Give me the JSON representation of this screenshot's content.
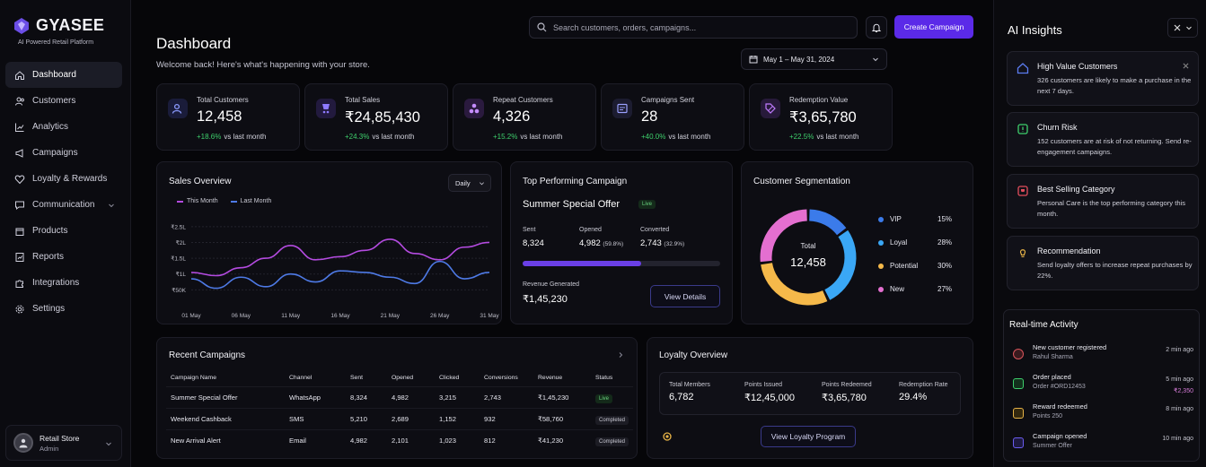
{
  "brand": {
    "name": "GYASEE",
    "tagline": "AI Powered Retail Platform"
  },
  "sidebar": {
    "items": [
      {
        "label": "Dashboard",
        "icon": "home-icon",
        "active": true
      },
      {
        "label": "Customers",
        "icon": "users-icon"
      },
      {
        "label": "Analytics",
        "icon": "bar-chart-icon"
      },
      {
        "label": "Campaigns",
        "icon": "megaphone-icon"
      },
      {
        "label": "Loyalty & Rewards",
        "icon": "heart-icon"
      },
      {
        "label": "Communication",
        "icon": "message-icon",
        "has_submenu": true
      },
      {
        "label": "Products",
        "icon": "box-icon"
      },
      {
        "label": "Reports",
        "icon": "report-icon"
      },
      {
        "label": "Integrations",
        "icon": "puzzle-icon"
      },
      {
        "label": "Settings",
        "icon": "gear-icon"
      }
    ]
  },
  "user": {
    "name": "Retail Store",
    "role": "Admin"
  },
  "header": {
    "title": "Dashboard",
    "subtitle": "Welcome back! Here's what's happening with your store.",
    "search_placeholder": "Search customers, orders, campaigns...",
    "create_button": "Create Campaign",
    "date_range": "May 1 – May 31, 2024"
  },
  "kpis": [
    {
      "label": "Total Customers",
      "value": "12,458",
      "change": "+18.6%",
      "note": "vs last month",
      "color": "#3b3f9a"
    },
    {
      "label": "Total Sales",
      "value": "₹24,85,430",
      "change": "+24.3%",
      "note": "vs last month",
      "color": "#4a3a9e"
    },
    {
      "label": "Repeat Customers",
      "value": "4,326",
      "change": "+15.2%",
      "note": "vs last month",
      "color": "#6a3aa8"
    },
    {
      "label": "Campaigns Sent",
      "value": "28",
      "change": "+40.0%",
      "note": "vs last month",
      "color": "#3a3a7a"
    },
    {
      "label": "Redemption Value",
      "value": "₹3,65,780",
      "change": "+22.5%",
      "note": "vs last month",
      "color": "#5a2e8e"
    }
  ],
  "sales": {
    "title": "Sales Overview",
    "period": "Daily",
    "legend": [
      "This Month",
      "Last Month"
    ],
    "colors": [
      "#b44be0",
      "#4e7ae6"
    ]
  },
  "chart_data": {
    "type": "line",
    "x": [
      "01 May",
      "06 May",
      "11 May",
      "16 May",
      "21 May",
      "26 May",
      "31 May"
    ],
    "ytick_labels": [
      "₹2.5L",
      "₹2L",
      "₹1.5L",
      "₹1L",
      "₹50K"
    ],
    "ylim": [
      0,
      2.75
    ],
    "series": [
      {
        "name": "This Month",
        "points": [
          [
            0,
            1.05
          ],
          [
            0.5,
            0.95
          ],
          [
            1,
            1.2
          ],
          [
            1.5,
            1.5
          ],
          [
            2,
            1.9
          ],
          [
            2.5,
            1.45
          ],
          [
            3,
            1.55
          ],
          [
            3.5,
            1.75
          ],
          [
            4,
            2.1
          ],
          [
            4.5,
            1.65
          ],
          [
            5,
            1.45
          ],
          [
            5.5,
            1.85
          ],
          [
            6,
            2.0
          ]
        ]
      },
      {
        "name": "Last Month",
        "points": [
          [
            0,
            0.85
          ],
          [
            0.5,
            0.55
          ],
          [
            1,
            0.9
          ],
          [
            1.5,
            0.6
          ],
          [
            2,
            1.0
          ],
          [
            2.5,
            0.75
          ],
          [
            3,
            1.1
          ],
          [
            3.5,
            1.05
          ],
          [
            4,
            0.9
          ],
          [
            4.5,
            0.7
          ],
          [
            5,
            1.4
          ],
          [
            5.5,
            0.85
          ],
          [
            6,
            1.05
          ]
        ]
      }
    ]
  },
  "top_campaign": {
    "title": "Top Performing Campaign",
    "name": "Summer Special Offer",
    "status": "Live",
    "sent_label": "Sent",
    "sent": "8,324",
    "opened_label": "Opened",
    "opened": "4,982",
    "opened_pct": "(59.8%)",
    "converted_label": "Converted",
    "converted": "2,743",
    "converted_pct": "(32.9%)",
    "progress": 0.6,
    "revenue_label": "Revenue Generated",
    "revenue": "₹1,45,230",
    "button": "View Details"
  },
  "segmentation": {
    "title": "Customer Segmentation",
    "center_label": "Total",
    "center_value": "12,458",
    "segments": [
      {
        "name": "VIP",
        "pct": "15%",
        "value": 15,
        "color": "#3b7bea"
      },
      {
        "name": "Loyal",
        "pct": "28%",
        "value": 28,
        "color": "#3aa7f5"
      },
      {
        "name": "Potential",
        "pct": "30%",
        "value": 30,
        "color": "#f5b94a"
      },
      {
        "name": "New",
        "pct": "27%",
        "value": 27,
        "color": "#e46fd0"
      }
    ]
  },
  "recent": {
    "title": "Recent Campaigns",
    "headers": [
      "Campaign Name",
      "Channel",
      "Sent",
      "Opened",
      "Clicked",
      "Conversions",
      "Revenue",
      "Status"
    ],
    "rows": [
      [
        "Summer Special Offer",
        "WhatsApp",
        "8,324",
        "4,982",
        "3,215",
        "2,743",
        "₹1,45,230",
        "Live"
      ],
      [
        "Weekend Cashback",
        "SMS",
        "5,210",
        "2,689",
        "1,152",
        "932",
        "₹58,760",
        "Completed"
      ],
      [
        "New Arrival Alert",
        "Email",
        "4,982",
        "2,101",
        "1,023",
        "812",
        "₹41,230",
        "Completed"
      ]
    ]
  },
  "loyalty": {
    "title": "Loyalty Overview",
    "stats": [
      {
        "label": "Total Members",
        "value": "6,782"
      },
      {
        "label": "Points Issued",
        "value": "₹12,45,000"
      },
      {
        "label": "Points Redeemed",
        "value": "₹3,65,780"
      },
      {
        "label": "Redemption Rate",
        "value": "29.4%"
      }
    ],
    "button": "View Loyalty Program"
  },
  "ai": {
    "title": "AI Insights",
    "insights": [
      {
        "title": "High Value Customers",
        "desc": "326 customers are likely to make a purchase in the next 7 days.",
        "color": "#5b7cf0",
        "icon": "home-icon"
      },
      {
        "title": "Churn Risk",
        "desc": "152 customers are at risk of not returning. Send re-engagement campaigns.",
        "color": "#3ecf6c",
        "icon": "alert-icon"
      },
      {
        "title": "Best Selling Category",
        "desc": "Personal Care is the top performing category this month.",
        "color": "#e24d5c",
        "icon": "trophy-icon"
      },
      {
        "title": "Recommendation",
        "desc": "Send loyalty offers to increase repeat purchases by 22%.",
        "color": "#e7b347",
        "icon": "lightbulb-icon"
      }
    ]
  },
  "activity": {
    "title": "Real-time Activity",
    "items": [
      {
        "title": "New customer registered",
        "sub": "Rahul Sharma",
        "time": "2 min ago",
        "amount": "",
        "color": "#d9555b"
      },
      {
        "title": "Order placed",
        "sub": "Order #ORD12453",
        "time": "5 min ago",
        "amount": "₹2,350",
        "color": "#3ecf6c"
      },
      {
        "title": "Reward redeemed",
        "sub": "Points 250",
        "time": "8 min ago",
        "amount": "",
        "color": "#e7b347"
      },
      {
        "title": "Campaign opened",
        "sub": "Summer Offer",
        "time": "10 min ago",
        "amount": "",
        "color": "#6a5cf0"
      }
    ]
  }
}
